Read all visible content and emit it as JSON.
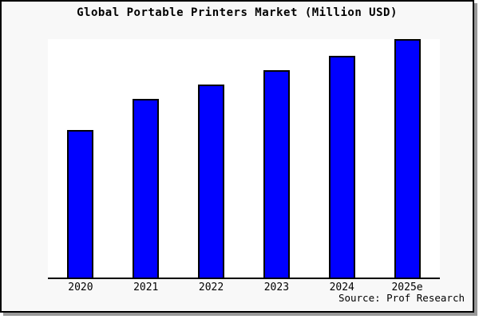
{
  "chart_data": {
    "type": "bar",
    "title": "Global Portable Printers Market (Million USD)",
    "categories": [
      "2020",
      "2021",
      "2022",
      "2023",
      "2024",
      "2025e"
    ],
    "values": [
      62,
      75,
      81,
      87,
      93,
      100
    ],
    "value_note": "y-axis unlabeled; values are bar heights as % of tallest (2025e) bar",
    "xlabel": "",
    "ylabel": "",
    "ylim": [
      0,
      100
    ],
    "grid": false,
    "legend": false,
    "source": "Source: Prof Research"
  },
  "colors": {
    "bar_fill": "#0000ff",
    "bar_border": "#000000",
    "axis": "#000000",
    "plot_background": "#ffffff",
    "frame_background": "#f8f8f8",
    "frame_border": "#000000",
    "shadow": "#999999",
    "text": "#000000"
  }
}
